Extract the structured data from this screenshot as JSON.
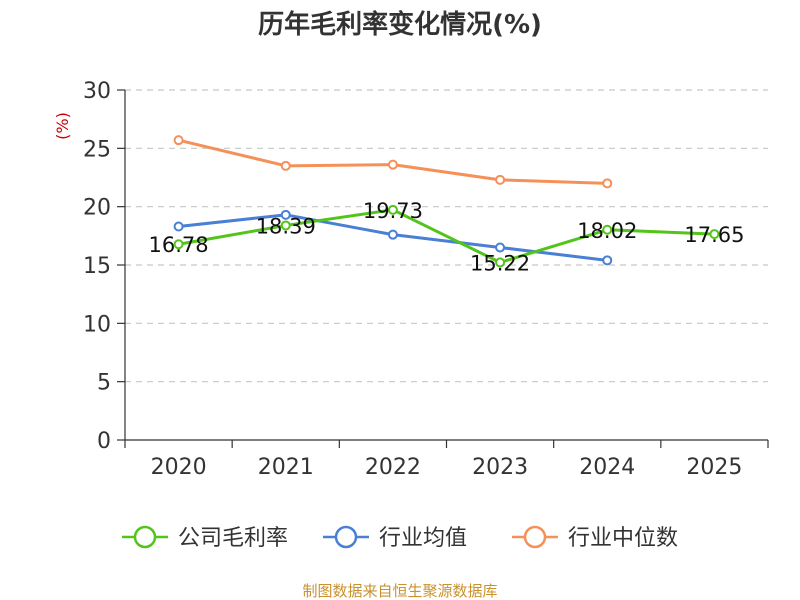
{
  "chart_data": {
    "type": "line",
    "title": "历年毛利率变化情况(%)",
    "ylabel": "(%)",
    "xlabel": "",
    "categories": [
      "2020",
      "2021",
      "2022",
      "2023",
      "2024",
      "2025"
    ],
    "ylim": [
      0,
      30
    ],
    "yticks": [
      "0",
      "5",
      "10",
      "15",
      "20",
      "25",
      "30"
    ],
    "grid": true,
    "legend_position": "bottom",
    "series": [
      {
        "name": "公司毛利率",
        "color": "#52c41a",
        "values": [
          16.78,
          18.39,
          19.73,
          15.22,
          18.02,
          17.65
        ],
        "labels": [
          "16.78",
          "18.39",
          "19.73",
          "15.22",
          "18.02",
          "17.65"
        ]
      },
      {
        "name": "行业均值",
        "color": "#4a7fd6",
        "values": [
          18.3,
          19.3,
          17.6,
          16.5,
          15.4,
          null
        ]
      },
      {
        "name": "行业中位数",
        "color": "#f59058",
        "values": [
          25.7,
          23.5,
          23.6,
          22.3,
          22.0,
          null
        ]
      }
    ]
  },
  "source": "制图数据来自恒生聚源数据库"
}
